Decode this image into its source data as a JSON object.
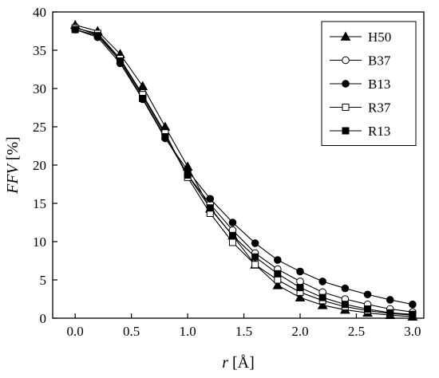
{
  "chart_data": {
    "type": "line",
    "title": "",
    "xlabel_italic": "r",
    "xlabel_unit": " [Å]",
    "ylabel_italic": "FFV",
    "ylabel_unit": " [%]",
    "xlim": [
      -0.2,
      3.1
    ],
    "ylim": [
      0,
      40
    ],
    "xticks": [
      0.0,
      0.5,
      1.0,
      1.5,
      2.0,
      2.5,
      3.0
    ],
    "xtick_labels": [
      "0.0",
      "0.5",
      "1.0",
      "1.5",
      "2.0",
      "2.5",
      "3.0"
    ],
    "yticks": [
      0,
      5,
      10,
      15,
      20,
      25,
      30,
      35,
      40
    ],
    "ytick_labels": [
      "0",
      "5",
      "10",
      "15",
      "20",
      "25",
      "30",
      "35",
      "40"
    ],
    "grid": false,
    "legend_position": "top-right",
    "x": [
      0.0,
      0.2,
      0.4,
      0.6,
      0.8,
      1.0,
      1.2,
      1.4,
      1.6,
      1.8,
      2.0,
      2.2,
      2.4,
      2.6,
      2.8,
      3.0
    ],
    "series": [
      {
        "name": "H50",
        "marker": "triangle-filled",
        "values": [
          38.3,
          37.5,
          34.5,
          30.3,
          25.0,
          19.8,
          14.3,
          10.8,
          7.0,
          4.3,
          2.7,
          1.7,
          1.1,
          0.7,
          0.4,
          0.2
        ]
      },
      {
        "name": "B37",
        "marker": "circle-open",
        "values": [
          38.0,
          37.0,
          33.8,
          29.0,
          24.0,
          18.7,
          14.9,
          11.5,
          8.5,
          6.4,
          4.8,
          3.4,
          2.5,
          1.8,
          1.2,
          0.8
        ]
      },
      {
        "name": "B13",
        "marker": "circle-filled",
        "values": [
          37.7,
          36.7,
          33.3,
          28.6,
          23.5,
          19.3,
          15.6,
          12.5,
          9.8,
          7.6,
          6.1,
          4.8,
          3.9,
          3.1,
          2.4,
          1.8
        ]
      },
      {
        "name": "R37",
        "marker": "square-open",
        "values": [
          37.9,
          37.2,
          33.9,
          29.2,
          24.2,
          18.4,
          13.7,
          9.9,
          7.0,
          5.0,
          3.4,
          2.3,
          1.5,
          1.0,
          0.6,
          0.4
        ]
      },
      {
        "name": "R13",
        "marker": "square-filled",
        "values": [
          37.7,
          36.9,
          33.6,
          28.7,
          23.7,
          18.7,
          14.4,
          10.8,
          8.0,
          5.8,
          4.0,
          2.7,
          1.8,
          1.2,
          0.7,
          0.5
        ]
      }
    ]
  }
}
